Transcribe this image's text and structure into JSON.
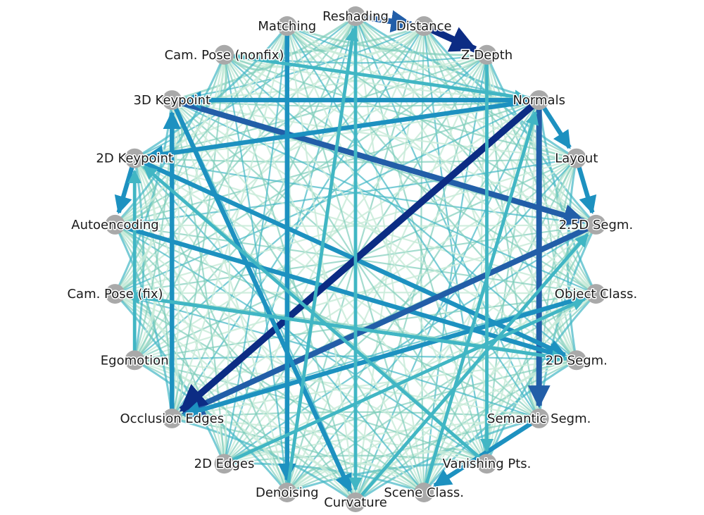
{
  "diagram": {
    "type": "directed-chord-graph",
    "palette": [
      "#c9ebd9",
      "#7fcdbb",
      "#41b6c4",
      "#1d91c0",
      "#225ea8",
      "#0c2c84"
    ],
    "node_color": "#a9a9a9",
    "nodes": [
      {
        "id": "reshading",
        "label": "Reshading"
      },
      {
        "id": "distance",
        "label": "Distance"
      },
      {
        "id": "z-depth",
        "label": "Z-Depth"
      },
      {
        "id": "normals",
        "label": "Normals"
      },
      {
        "id": "layout",
        "label": "Layout"
      },
      {
        "id": "2-5d-segm",
        "label": "2.5D Segm."
      },
      {
        "id": "object-class",
        "label": "Object Class."
      },
      {
        "id": "2d-segm",
        "label": "2D Segm."
      },
      {
        "id": "semantic-segm",
        "label": "Semantic Segm."
      },
      {
        "id": "vanishing-pts",
        "label": "Vanishing Pts."
      },
      {
        "id": "scene-class",
        "label": "Scene Class."
      },
      {
        "id": "curvature",
        "label": "Curvature"
      },
      {
        "id": "denoising",
        "label": "Denoising"
      },
      {
        "id": "2d-edges",
        "label": "2D Edges"
      },
      {
        "id": "occlusion-edges",
        "label": "Occlusion Edges"
      },
      {
        "id": "egomotion",
        "label": "Egomotion"
      },
      {
        "id": "cam-pose-fix",
        "label": "Cam. Pose (fix)"
      },
      {
        "id": "autoencoding",
        "label": "Autoencoding"
      },
      {
        "id": "2d-keypoint",
        "label": "2D Keypoint"
      },
      {
        "id": "3d-keypoint",
        "label": "3D Keypoint"
      },
      {
        "id": "cam-pose-nonfix",
        "label": "Cam. Pose (nonfix)"
      },
      {
        "id": "matching",
        "label": "Matching"
      }
    ],
    "edges": [
      {
        "from": "normals",
        "to": "semantic-segm",
        "weight": 5
      },
      {
        "from": "3d-keypoint",
        "to": "2-5d-segm",
        "weight": 5
      },
      {
        "from": "autoencoding",
        "to": "2d-segm",
        "weight": 4
      },
      {
        "from": "2d-keypoint",
        "to": "2d-segm",
        "weight": 4
      },
      {
        "from": "2-5d-segm",
        "to": "occlusion-edges",
        "weight": 5
      },
      {
        "from": "normals",
        "to": "occlusion-edges",
        "weight": 6
      },
      {
        "from": "semantic-segm",
        "to": "scene-class",
        "weight": 4
      },
      {
        "from": "object-class",
        "to": "occlusion-edges",
        "weight": 4
      },
      {
        "from": "matching",
        "to": "denoising",
        "weight": 4
      },
      {
        "from": "3d-keypoint",
        "to": "curvature",
        "weight": 4
      },
      {
        "from": "normals",
        "to": "2d-keypoint",
        "weight": 4
      },
      {
        "from": "normals",
        "to": "3d-keypoint",
        "weight": 4
      },
      {
        "from": "distance",
        "to": "z-depth",
        "weight": 6
      },
      {
        "from": "reshading",
        "to": "distance",
        "weight": 5
      },
      {
        "from": "normals",
        "to": "layout",
        "weight": 4
      },
      {
        "from": "layout",
        "to": "2-5d-segm",
        "weight": 4
      },
      {
        "from": "2d-keypoint",
        "to": "autoencoding",
        "weight": 4
      },
      {
        "from": "occlusion-edges",
        "to": "3d-keypoint",
        "weight": 4
      },
      {
        "from": "z-depth",
        "to": "vanishing-pts",
        "weight": 3
      },
      {
        "from": "curvature",
        "to": "2-5d-segm",
        "weight": 3
      },
      {
        "from": "denoising",
        "to": "reshading",
        "weight": 3
      },
      {
        "from": "egomotion",
        "to": "2d-keypoint",
        "weight": 3
      },
      {
        "from": "cam-pose-fix",
        "to": "2d-segm",
        "weight": 3
      },
      {
        "from": "scene-class",
        "to": "normals",
        "weight": 3
      },
      {
        "from": "2d-edges",
        "to": "object-class",
        "weight": 3
      },
      {
        "from": "vanishing-pts",
        "to": "2d-keypoint",
        "weight": 3
      },
      {
        "from": "cam-pose-nonfix",
        "to": "normals",
        "weight": 3
      },
      {
        "from": "reshading",
        "to": "curvature",
        "weight": 3
      },
      {
        "from": "2d-segm",
        "to": "cam-pose-fix",
        "weight": 3
      }
    ]
  }
}
